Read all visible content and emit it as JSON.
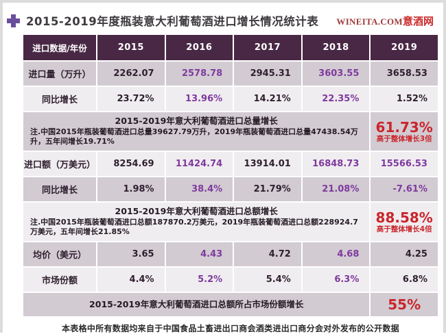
{
  "header": {
    "title": "2015-2019年度瓶装意大利葡萄酒进口增长情况统计表",
    "logo_latin": "WINEITA.COM",
    "logo_cn": "意酒网"
  },
  "footer": {
    "note": "本表格中所有数据均来自于中国食品土畜进出口商会酒类进出口商分会对外发布的公开数据"
  },
  "colors": {
    "header_bg": "#492845",
    "row_gray": "#d2cbd2",
    "row_light": "#f0edf0",
    "text_dark": "#2e1f2e",
    "highlight_purple": "#7e3a9e",
    "accent_red": "#c9252b",
    "title_plus_purple": "#6b4e9b",
    "logo_dark_red": "#9e3a3a",
    "logo_red": "#cc2b2b"
  },
  "chart_data": {
    "type": "table",
    "title": "2015-2019年度瓶装意大利葡萄酒进口增长情况统计表",
    "columns": [
      "进口数据/年份",
      "2015",
      "2016",
      "2017",
      "2018",
      "2019"
    ],
    "sections": [
      {
        "kind": "data",
        "label": "进口量（万升）",
        "values": [
          "2262.07",
          "2578.78",
          "2945.31",
          "3603.55",
          "3658.53"
        ],
        "purple_indexes": [
          1,
          3
        ],
        "shade": "gray"
      },
      {
        "kind": "data",
        "label": "同比增长",
        "values": [
          "23.72%",
          "13.96%",
          "14.21%",
          "22.35%",
          "1.52%"
        ],
        "purple_indexes": [
          1,
          3
        ],
        "shade": "light"
      },
      {
        "kind": "note",
        "title": "2015-2019年意大利葡萄酒进口总量增长",
        "note": "注.中国2015年瓶装葡萄酒进口总量39627.79万升，2019年瓶装葡萄酒进口总量47438.54万升，五年间增长19.71%",
        "big_value": "61.73%",
        "big_caption": "高于整体增长3倍",
        "shade": "gray"
      },
      {
        "kind": "data",
        "label": "进口额（万美元）",
        "values": [
          "8254.69",
          "11424.74",
          "13914.01",
          "16848.73",
          "15566.53"
        ],
        "purple_indexes": [
          1,
          3,
          4
        ],
        "shade": "light"
      },
      {
        "kind": "data",
        "label": "同比增长",
        "values": [
          "1.98%",
          "38.4%",
          "21.79%",
          "21.08%",
          "-7.61%"
        ],
        "purple_indexes": [
          1,
          3,
          4
        ],
        "shade": "gray"
      },
      {
        "kind": "note",
        "title": "2015-2019年意大利葡萄酒进口总额增长",
        "note": "注.中国2015年瓶装葡萄酒进口总额187870.2万美元，2019年瓶装葡萄酒进口总额228924.7万美元，五年间增长21.85%",
        "big_value": "88.58%",
        "big_caption": "高于整体增长4倍",
        "shade": "light"
      },
      {
        "kind": "data",
        "label": "均价（美元）",
        "values": [
          "3.65",
          "4.43",
          "4.72",
          "4.68",
          "4.25"
        ],
        "purple_indexes": [
          1,
          3
        ],
        "shade": "gray"
      },
      {
        "kind": "data",
        "label": "市场份额",
        "values": [
          "4.4%",
          "5.2%",
          "5.4%",
          "6.3%",
          "6.8%"
        ],
        "purple_indexes": [
          1,
          3
        ],
        "shade": "light"
      },
      {
        "kind": "summary",
        "title": "2015-2019年意大利葡萄酒进口总额所占市场份额增长",
        "big_value": "55%",
        "shade": "gray"
      }
    ]
  }
}
